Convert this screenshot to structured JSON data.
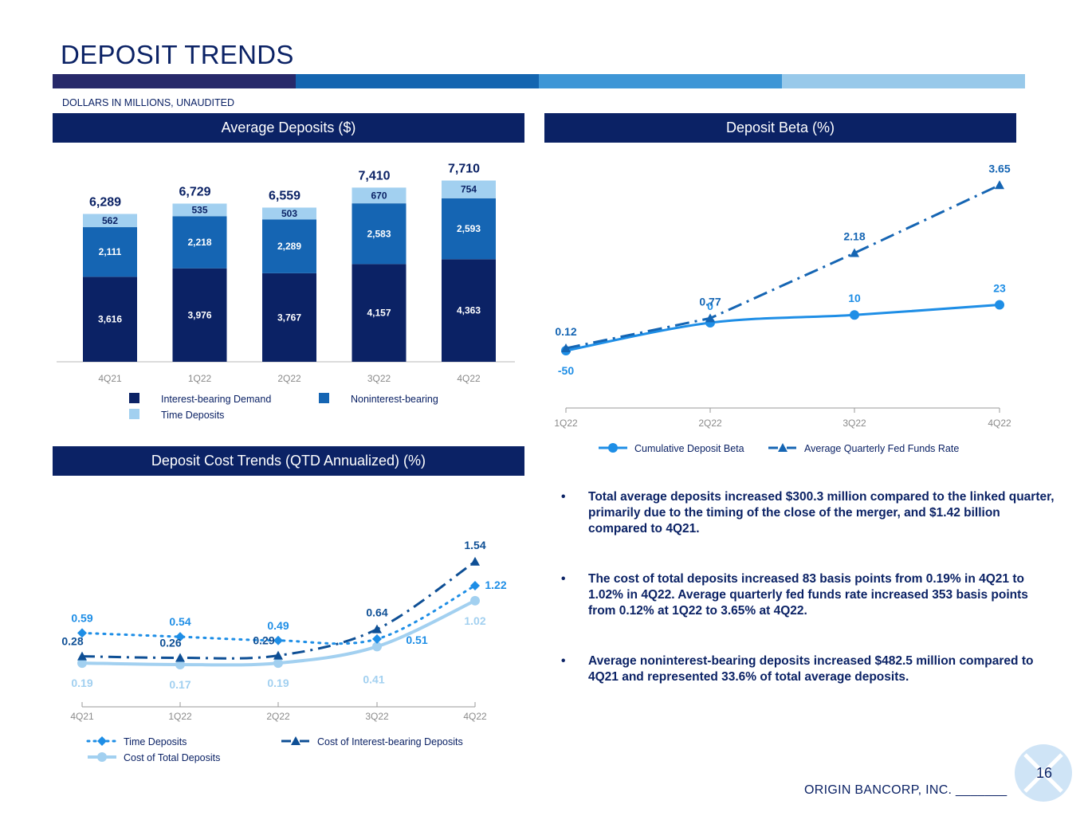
{
  "page": {
    "title": "DEPOSIT TRENDS",
    "subtitle": "DOLLARS IN MILLIONS, UNAUDITED",
    "footer": "ORIGIN BANCORP, INC. _______",
    "page_number": "16",
    "bar_colors": [
      "#27296a",
      "#1465b0",
      "#3e96d6",
      "#98c9ea"
    ]
  },
  "sections": {
    "avg_deposits": "Average Deposits ($)",
    "deposit_beta": "Deposit Beta (%)",
    "deposit_cost": "Deposit Cost Trends (QTD Annualized) (%)"
  },
  "bullets": [
    "Total average deposits increased $300.3 million compared to the linked quarter, primarily due to the timing of the close of the merger, and $1.42 billion compared to 4Q21.",
    "The cost of total deposits increased 83 basis points from 0.19% in 4Q21 to 1.02% in 4Q22. Average quarterly fed funds rate increased 353 basis points from 0.12% at 1Q22 to 3.65% at 4Q22.",
    "Average noninterest-bearing deposits increased $482.5 million compared to 4Q21 and represented 33.6% of total average deposits."
  ],
  "chart_data": [
    {
      "id": "average-deposits",
      "type": "bar",
      "stacked": true,
      "title": "Average Deposits ($)",
      "categories": [
        "4Q21",
        "1Q22",
        "2Q22",
        "3Q22",
        "4Q22"
      ],
      "series": [
        {
          "name": "Interest-bearing Demand",
          "color": "#0b2265",
          "label_color": "#ffffff",
          "values": [
            3616,
            3976,
            3767,
            4157,
            4363
          ],
          "labels": [
            "3,616",
            "3,976",
            "3,767",
            "4,157",
            "4,363"
          ]
        },
        {
          "name": "Noninterest-bearing",
          "color": "#1565b3",
          "label_color": "#ffffff",
          "values": [
            2111,
            2218,
            2289,
            2583,
            2593
          ],
          "labels": [
            "2,111",
            "2,218",
            "2,289",
            "2,583",
            "2,593"
          ]
        },
        {
          "name": "Time Deposits",
          "color": "#a2d0f0",
          "label_color": "#0b2265",
          "values": [
            562,
            535,
            503,
            670,
            754
          ],
          "labels": [
            "562",
            "535",
            "503",
            "670",
            "754"
          ]
        }
      ],
      "totals": [
        "6,289",
        "6,729",
        "6,559",
        "7,410",
        "7,710"
      ],
      "ylim": [
        0,
        8000
      ]
    },
    {
      "id": "deposit-beta",
      "type": "line",
      "title": "Deposit Beta (%)",
      "categories": [
        "1Q22",
        "2Q22",
        "3Q22",
        "4Q22"
      ],
      "series": [
        {
          "name": "Cumulative Deposit Beta",
          "color": "#1e8ee6",
          "values": [
            -50,
            0,
            10,
            23
          ],
          "labels": [
            "-50",
            "0",
            "10",
            "23"
          ]
        },
        {
          "name": "Average Quarterly Fed Funds Rate",
          "color": "#1565b3",
          "values": [
            0.12,
            0.77,
            2.18,
            3.65
          ],
          "labels": [
            "0.12",
            "0.77",
            "2.18",
            "3.65"
          ]
        }
      ]
    },
    {
      "id": "deposit-cost",
      "type": "line",
      "title": "Deposit Cost Trends (QTD Annualized) (%)",
      "categories": [
        "4Q21",
        "1Q22",
        "2Q22",
        "3Q22",
        "4Q22"
      ],
      "series": [
        {
          "name": "Time Deposits",
          "color": "#1e8ee6",
          "values": [
            0.59,
            0.54,
            0.49,
            0.51,
            1.22
          ],
          "labels": [
            "0.59",
            "0.54",
            "0.49",
            "0.51",
            "1.22"
          ]
        },
        {
          "name": "Cost of Interest-bearing Deposits",
          "color": "#0e4f95",
          "values": [
            0.28,
            0.26,
            0.29,
            0.64,
            1.54
          ],
          "labels": [
            "0.28",
            "0.26",
            "0.29",
            "0.64",
            "1.54"
          ]
        },
        {
          "name": "Cost of Total Deposits",
          "color": "#a2d0f0",
          "values": [
            0.19,
            0.17,
            0.19,
            0.41,
            1.02
          ],
          "labels": [
            "0.19",
            "0.17",
            "0.19",
            "0.41",
            "1.02"
          ]
        }
      ]
    }
  ]
}
